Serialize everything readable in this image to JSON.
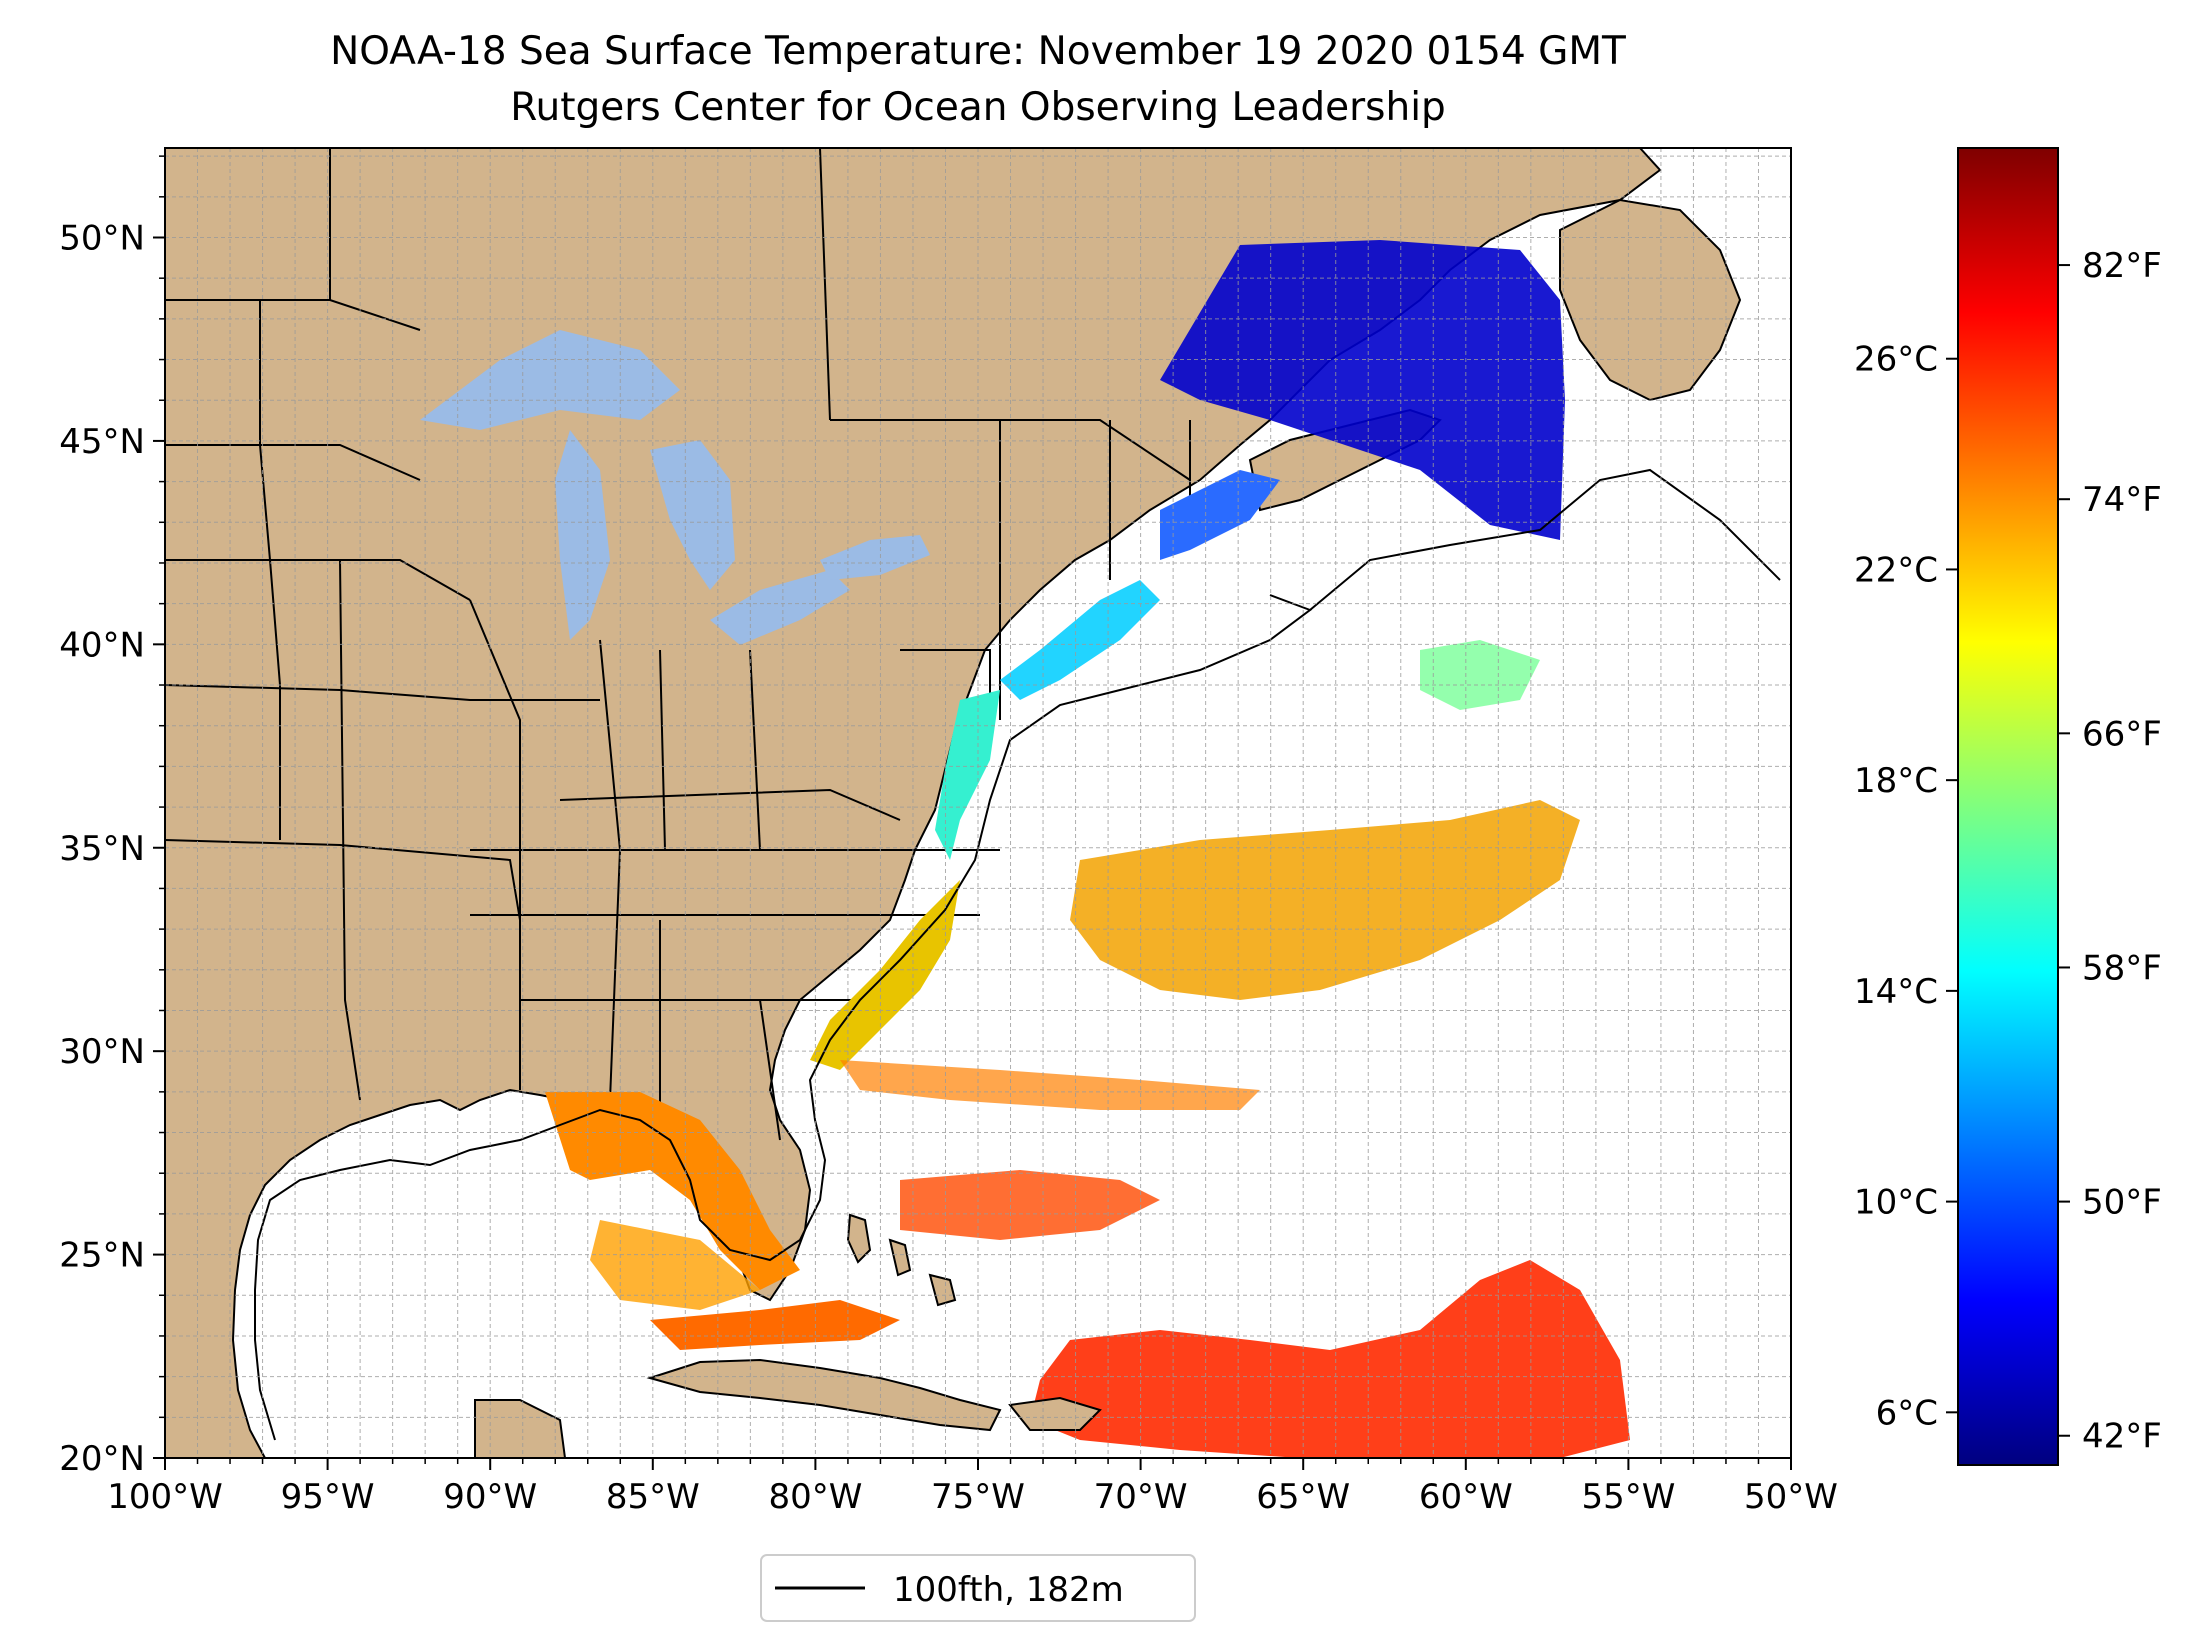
{
  "title": {
    "line1": "NOAA-18 Sea Surface Temperature: November 19 2020 0154 GMT",
    "line2": "Rutgers Center for Ocean Observing Leadership"
  },
  "map": {
    "lon_range": [
      -100,
      -50
    ],
    "lat_range": [
      20,
      52.2
    ],
    "x_ticks": [
      "100°W",
      "95°W",
      "90°W",
      "85°W",
      "80°W",
      "75°W",
      "70°W",
      "65°W",
      "60°W",
      "55°W",
      "50°W"
    ],
    "y_ticks": [
      "20°N",
      "25°N",
      "30°N",
      "35°N",
      "40°N",
      "45°N",
      "50°N"
    ],
    "grid": true,
    "colors": {
      "land": "#d2b48c",
      "lakes": "#9bbbe5",
      "ocean": "#ffffff",
      "coast": "#000000"
    }
  },
  "legend": {
    "label": "100fth, 182m",
    "placement": "below-map"
  },
  "colorbar": {
    "celsius_ticks": [
      "6°C",
      "10°C",
      "14°C",
      "18°C",
      "22°C",
      "26°C"
    ],
    "fahrenheit_ticks": [
      "42°F",
      "50°F",
      "58°F",
      "66°F",
      "74°F",
      "82°F"
    ],
    "colormap": "jet",
    "colors": [
      "#00007f",
      "#0000ff",
      "#007fff",
      "#00ffff",
      "#7fff7f",
      "#ffff00",
      "#ff7f00",
      "#ff0000",
      "#7f0000"
    ]
  }
}
